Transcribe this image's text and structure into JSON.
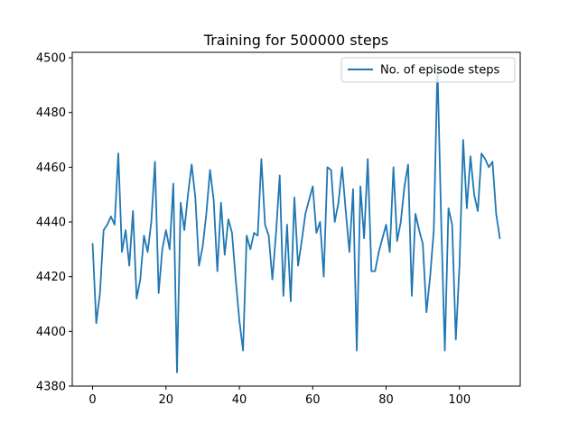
{
  "chart_data": {
    "type": "line",
    "title": "Training for 500000 steps",
    "xlabel": "",
    "ylabel": "",
    "xlim": [
      -5.55,
      116.55
    ],
    "ylim": [
      4380,
      4502
    ],
    "xticks": [
      0,
      20,
      40,
      60,
      80,
      100
    ],
    "yticks": [
      4380,
      4400,
      4420,
      4440,
      4460,
      4480,
      4500
    ],
    "grid": false,
    "legend_position": "top-right",
    "series": [
      {
        "name": "No. of episode steps",
        "color": "#1f77b4",
        "x": [
          0,
          1,
          2,
          3,
          4,
          5,
          6,
          7,
          8,
          9,
          10,
          11,
          12,
          13,
          14,
          15,
          16,
          17,
          18,
          19,
          20,
          21,
          22,
          23,
          24,
          25,
          26,
          27,
          28,
          29,
          30,
          31,
          32,
          33,
          34,
          35,
          36,
          37,
          38,
          39,
          40,
          41,
          42,
          43,
          44,
          45,
          46,
          47,
          48,
          49,
          50,
          51,
          52,
          53,
          54,
          55,
          56,
          57,
          58,
          59,
          60,
          61,
          62,
          63,
          64,
          65,
          66,
          67,
          68,
          69,
          70,
          71,
          72,
          73,
          74,
          75,
          76,
          77,
          78,
          79,
          80,
          81,
          82,
          83,
          84,
          85,
          86,
          87,
          88,
          89,
          90,
          91,
          92,
          93,
          94,
          95,
          96,
          97,
          98,
          99,
          100,
          101,
          102,
          103,
          104,
          105,
          106,
          107,
          108,
          109,
          110,
          111
        ],
        "values": [
          4432,
          4403,
          4414,
          4437,
          4439,
          4442,
          4439,
          4465,
          4429,
          4437,
          4424,
          4444,
          4412,
          4419,
          4435,
          4429,
          4440,
          4462,
          4414,
          4430,
          4437,
          4430,
          4454,
          4385,
          4447,
          4437,
          4450,
          4461,
          4449,
          4424,
          4431,
          4443,
          4459,
          4448,
          4422,
          4447,
          4428,
          4441,
          4436,
          4419,
          4404,
          4393,
          4435,
          4430,
          4436,
          4435,
          4463,
          4439,
          4435,
          4419,
          4436,
          4457,
          4413,
          4439,
          4411,
          4449,
          4424,
          4433,
          4443,
          4448,
          4453,
          4436,
          4440,
          4420,
          4460,
          4459,
          4440,
          4447,
          4460,
          4444,
          4429,
          4452,
          4393,
          4453,
          4434,
          4463,
          4422,
          4422,
          4429,
          4434,
          4439,
          4429,
          4460,
          4433,
          4440,
          4453,
          4461,
          4413,
          4443,
          4437,
          4432,
          4407,
          4420,
          4437,
          4497,
          4441,
          4393,
          4445,
          4439,
          4397,
          4424,
          4470,
          4445,
          4464,
          4450,
          4444,
          4465,
          4463,
          4460,
          4462,
          4443,
          4434
        ]
      }
    ]
  }
}
